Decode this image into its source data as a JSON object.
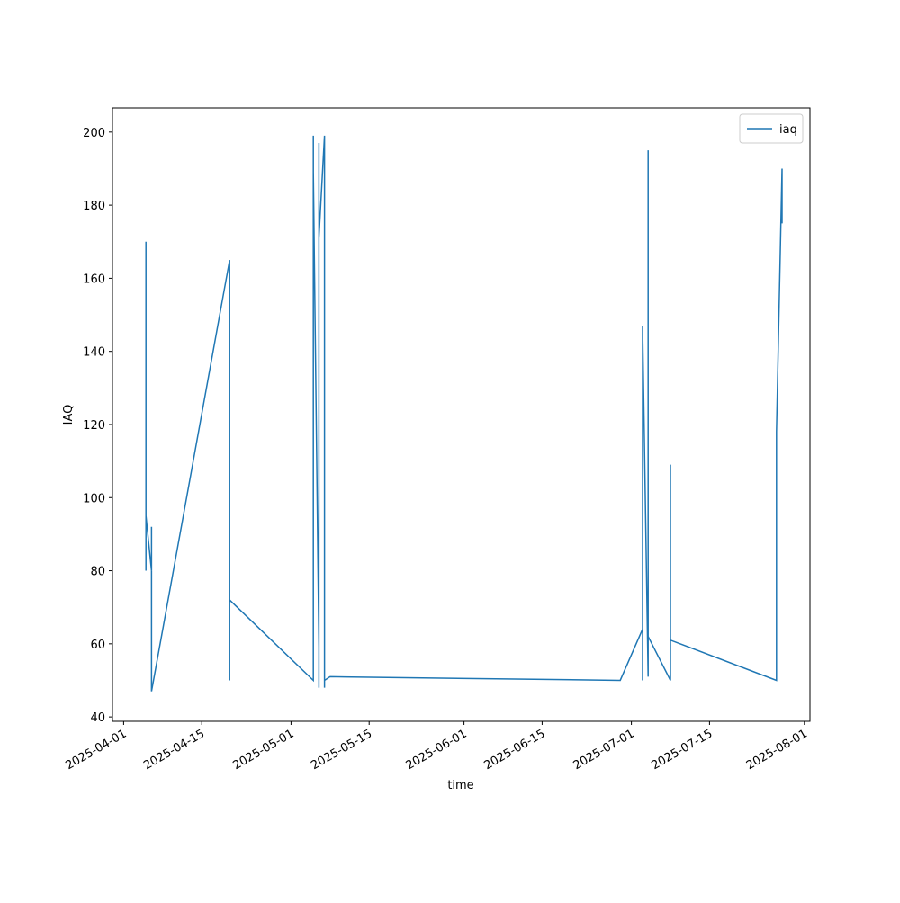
{
  "chart_data": {
    "type": "line",
    "x_label": "time",
    "y_label": "IAQ",
    "x": [
      "2025-04-05",
      "2025-04-05",
      "2025-04-05",
      "2025-04-05",
      "2025-04-05",
      "2025-04-05",
      "2025-04-06",
      "2025-04-06",
      "2025-04-06",
      "2025-04-06",
      "2025-04-20",
      "2025-04-20",
      "2025-04-20",
      "2025-04-20",
      "2025-04-20",
      "2025-05-05",
      "2025-05-05",
      "2025-05-05",
      "2025-05-05",
      "2025-05-05",
      "2025-05-05",
      "2025-05-06",
      "2025-05-06",
      "2025-05-06",
      "2025-05-06",
      "2025-05-06",
      "2025-05-06",
      "2025-05-07",
      "2025-05-07",
      "2025-05-07",
      "2025-05-07",
      "2025-05-07",
      "2025-05-07",
      "2025-05-08",
      "2025-06-29",
      "2025-07-03",
      "2025-07-03",
      "2025-07-03",
      "2025-07-03",
      "2025-07-03",
      "2025-07-03",
      "2025-07-04",
      "2025-07-04",
      "2025-07-04",
      "2025-07-04",
      "2025-07-04",
      "2025-07-08",
      "2025-07-08",
      "2025-07-08",
      "2025-07-08",
      "2025-07-08",
      "2025-07-27",
      "2025-07-27",
      "2025-07-27",
      "2025-07-27",
      "2025-07-27",
      "2025-07-28",
      "2025-07-28"
    ],
    "series": [
      {
        "name": "iaq",
        "color": "#1f77b4",
        "values": [
          118,
          103,
          144,
          80,
          170,
          95,
          80,
          92,
          48,
          47,
          165,
          61,
          90,
          50,
          72,
          50,
          192,
          83,
          199,
          140,
          189,
          59,
          173,
          48,
          197,
          60,
          171,
          199,
          48,
          185,
          127,
          153,
          50,
          51,
          50,
          64,
          81,
          50,
          97,
          50,
          147,
          51,
          195,
          56,
          131,
          62,
          50,
          109,
          52,
          107,
          61,
          50,
          59,
          102,
          72,
          118,
          190,
          175
        ]
      }
    ],
    "xlim": [
      "2025-03-30",
      "2025-08-02"
    ],
    "xticks": [
      "2025-04-01",
      "2025-04-15",
      "2025-05-01",
      "2025-05-15",
      "2025-06-01",
      "2025-06-15",
      "2025-07-01",
      "2025-07-15",
      "2025-08-01"
    ],
    "ylim": [
      38.8,
      206.6
    ],
    "yticks": [
      40,
      60,
      80,
      100,
      120,
      140,
      160,
      180,
      200
    ],
    "legend": "upper right"
  }
}
